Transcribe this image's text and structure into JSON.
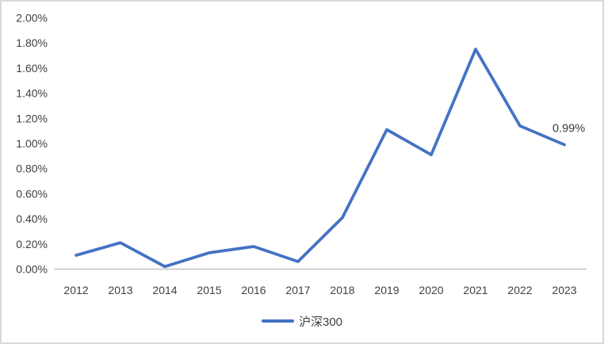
{
  "chart_data": {
    "type": "line",
    "title": "",
    "categories": [
      "2012",
      "2013",
      "2014",
      "2015",
      "2016",
      "2017",
      "2018",
      "2019",
      "2020",
      "2021",
      "2022",
      "2023"
    ],
    "series": [
      {
        "name": "沪深300",
        "color": "#4472C4",
        "values": [
          0.11,
          0.21,
          0.02,
          0.13,
          0.18,
          0.06,
          0.41,
          1.11,
          0.91,
          1.75,
          1.14,
          0.99
        ]
      }
    ],
    "xlabel": "",
    "ylabel": "",
    "ylim": [
      0,
      2.0
    ],
    "ytick_step": 0.2,
    "ytick_labels": [
      "0.00%",
      "0.20%",
      "0.40%",
      "0.60%",
      "0.80%",
      "1.00%",
      "1.20%",
      "1.40%",
      "1.60%",
      "1.80%",
      "2.00%"
    ],
    "grid": false,
    "legend_position": "bottom",
    "annotations": [
      {
        "text": "0.99%",
        "category": "2023",
        "value": 0.99
      }
    ]
  },
  "legend": {
    "label": "沪深300"
  },
  "colors": {
    "line": "#4472C4",
    "axis_line": "#c9c9c9",
    "text": "#404040",
    "frame_border": "#d9d9d9"
  }
}
